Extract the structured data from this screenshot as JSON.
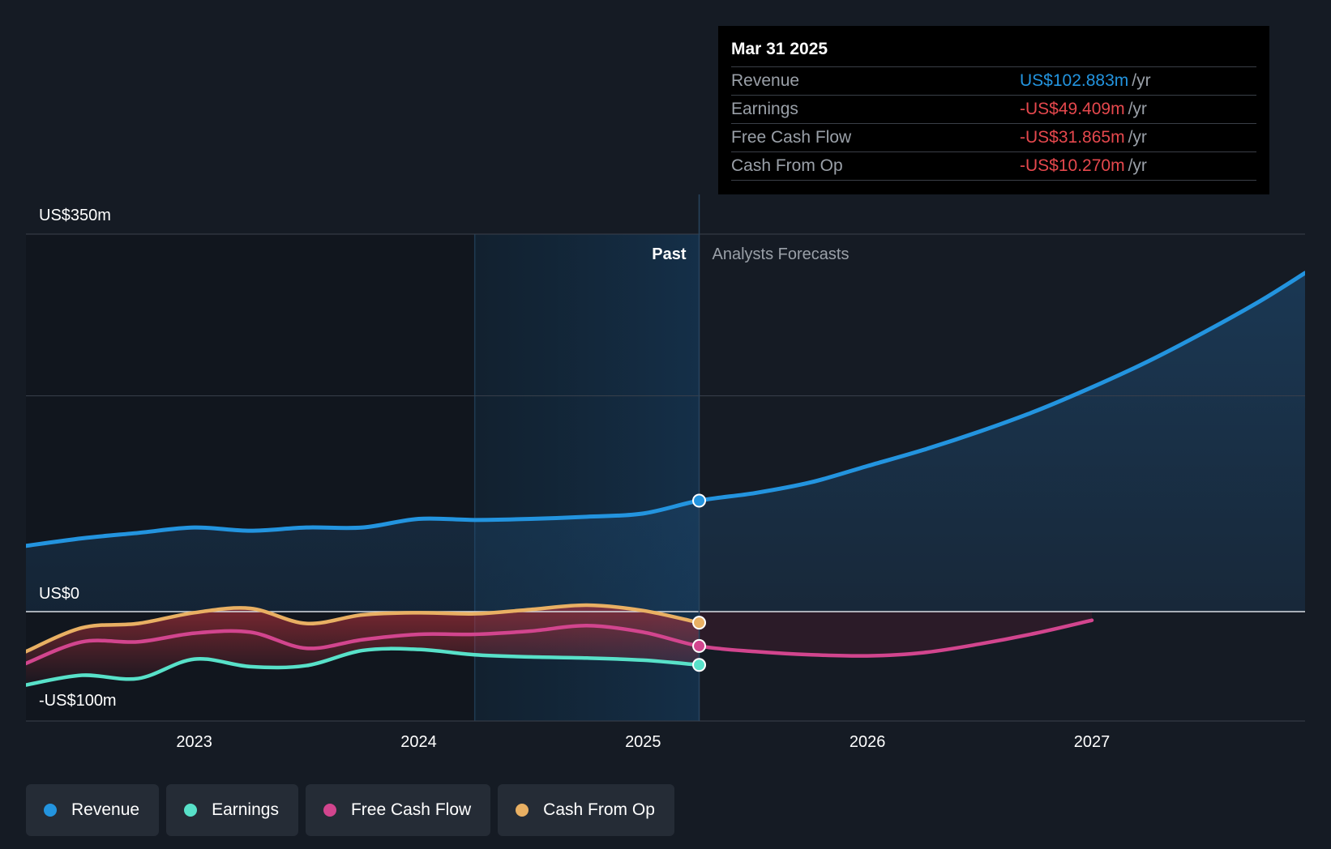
{
  "chart_data": {
    "type": "line",
    "title": "",
    "x_axis": {
      "ticks": [
        "2023",
        "2024",
        "2025",
        "2026",
        "2027"
      ],
      "range": [
        2022.25,
        2027.95
      ]
    },
    "y_axis": {
      "labels": [
        "US$350m",
        "US$0",
        "-US$100m"
      ],
      "range": [
        -100,
        350
      ],
      "unit": "US$m"
    },
    "regions": {
      "past_label": "Past",
      "forecast_label": "Analysts Forecasts",
      "divider_x": 2025.25,
      "highlight_start_x": 2024.25
    },
    "series": [
      {
        "name": "Revenue",
        "color": "#2394df",
        "points": [
          [
            2022.25,
            61
          ],
          [
            2022.5,
            68
          ],
          [
            2022.75,
            73
          ],
          [
            2023.0,
            78
          ],
          [
            2023.25,
            75
          ],
          [
            2023.5,
            78
          ],
          [
            2023.75,
            78
          ],
          [
            2024.0,
            86
          ],
          [
            2024.25,
            85
          ],
          [
            2024.5,
            86
          ],
          [
            2024.75,
            88
          ],
          [
            2025.0,
            91
          ],
          [
            2025.25,
            102.883
          ],
          [
            2025.5,
            110
          ],
          [
            2025.75,
            120
          ],
          [
            2026.0,
            135
          ],
          [
            2026.25,
            150
          ],
          [
            2026.5,
            167
          ],
          [
            2026.75,
            186
          ],
          [
            2027.0,
            208
          ],
          [
            2027.25,
            232
          ],
          [
            2027.5,
            259
          ],
          [
            2027.75,
            288
          ],
          [
            2027.95,
            314
          ]
        ]
      },
      {
        "name": "Earnings",
        "color": "#58e1c9",
        "points": [
          [
            2022.25,
            -68
          ],
          [
            2022.5,
            -59
          ],
          [
            2022.75,
            -62
          ],
          [
            2023.0,
            -44
          ],
          [
            2023.25,
            -51
          ],
          [
            2023.5,
            -50
          ],
          [
            2023.75,
            -36
          ],
          [
            2024.0,
            -35
          ],
          [
            2024.25,
            -40
          ],
          [
            2024.5,
            -42
          ],
          [
            2024.75,
            -43
          ],
          [
            2025.0,
            -45
          ],
          [
            2025.25,
            -49.409
          ]
        ]
      },
      {
        "name": "Free Cash Flow",
        "color": "#d2458e",
        "points": [
          [
            2022.25,
            -48
          ],
          [
            2022.5,
            -28
          ],
          [
            2022.75,
            -28
          ],
          [
            2023.0,
            -20
          ],
          [
            2023.25,
            -19
          ],
          [
            2023.5,
            -34
          ],
          [
            2023.75,
            -26
          ],
          [
            2024.0,
            -21
          ],
          [
            2024.25,
            -21
          ],
          [
            2024.5,
            -18
          ],
          [
            2024.75,
            -13
          ],
          [
            2025.0,
            -19
          ],
          [
            2025.25,
            -31.865
          ],
          [
            2025.5,
            -37
          ],
          [
            2025.75,
            -40
          ],
          [
            2026.0,
            -41
          ],
          [
            2026.25,
            -38
          ],
          [
            2026.5,
            -30
          ],
          [
            2026.75,
            -20
          ],
          [
            2027.0,
            -8
          ]
        ]
      },
      {
        "name": "Cash From Op",
        "color": "#e9b063",
        "points": [
          [
            2022.25,
            -37
          ],
          [
            2022.5,
            -15
          ],
          [
            2022.75,
            -11
          ],
          [
            2023.0,
            -1
          ],
          [
            2023.25,
            3
          ],
          [
            2023.5,
            -11
          ],
          [
            2023.75,
            -3
          ],
          [
            2024.0,
            -1
          ],
          [
            2024.25,
            -2
          ],
          [
            2024.5,
            2
          ],
          [
            2024.75,
            6
          ],
          [
            2025.0,
            1
          ],
          [
            2025.25,
            -10.27
          ]
        ]
      }
    ]
  },
  "tooltip": {
    "date": "Mar 31 2025",
    "unit": "/yr",
    "rows": [
      {
        "label": "Revenue",
        "value": "US$102.883m",
        "color": "#2394df"
      },
      {
        "label": "Earnings",
        "value": "-US$49.409m",
        "color": "#e5484d"
      },
      {
        "label": "Free Cash Flow",
        "value": "-US$31.865m",
        "color": "#e5484d"
      },
      {
        "label": "Cash From Op",
        "value": "-US$10.270m",
        "color": "#e5484d"
      }
    ]
  },
  "legend": [
    {
      "label": "Revenue",
      "color": "#2394df"
    },
    {
      "label": "Earnings",
      "color": "#58e1c9"
    },
    {
      "label": "Free Cash Flow",
      "color": "#d2458e"
    },
    {
      "label": "Cash From Op",
      "color": "#e9b063"
    }
  ]
}
